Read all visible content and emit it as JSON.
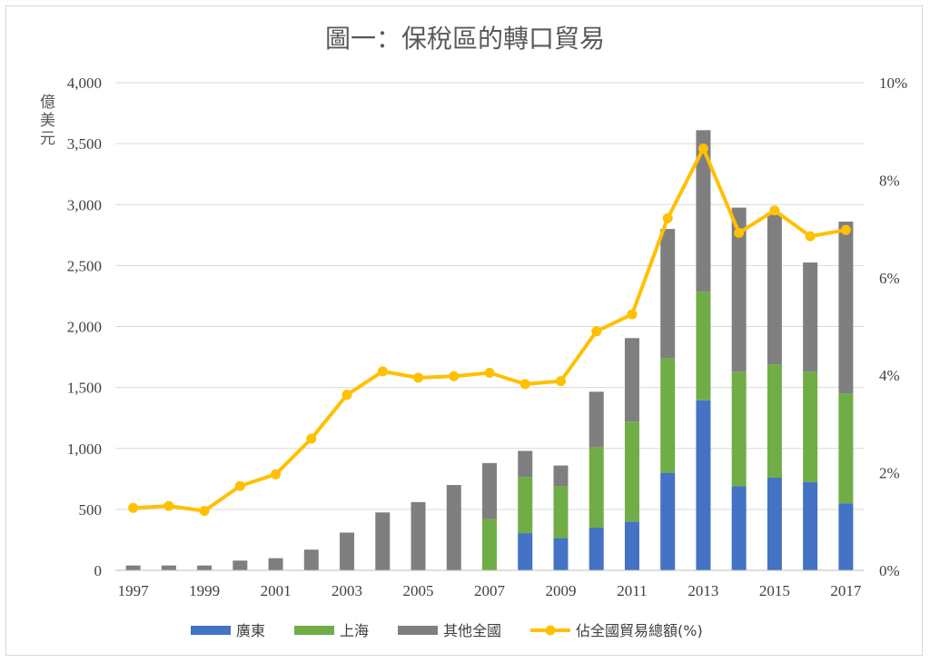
{
  "chart_data": {
    "type": "bar",
    "title": "圖一：保稅區的轉口貿易",
    "ylabel": "億美元",
    "y2label": "",
    "ylim": [
      0,
      4000
    ],
    "y2lim": [
      0,
      10
    ],
    "y_ticks": [
      "0",
      "500",
      "1,000",
      "1,500",
      "2,000",
      "2,500",
      "3,000",
      "3,500",
      "4,000"
    ],
    "y2_ticks": [
      "0%",
      "2%",
      "4%",
      "6%",
      "8%",
      "10%"
    ],
    "x_tick_labels": [
      "1997",
      "1999",
      "2001",
      "2003",
      "2005",
      "2007",
      "2009",
      "2011",
      "2013",
      "2015",
      "2017"
    ],
    "categories": [
      "1997",
      "1998",
      "1999",
      "2000",
      "2001",
      "2002",
      "2003",
      "2004",
      "2005",
      "2006",
      "2007",
      "2008",
      "2009",
      "2010",
      "2011",
      "2012",
      "2013",
      "2014",
      "2015",
      "2016",
      "2017"
    ],
    "stacked": true,
    "grid": true,
    "legend_position": "bottom",
    "series": [
      {
        "name": "廣東",
        "color": "#4472c4",
        "values": [
          0,
          0,
          0,
          0,
          0,
          0,
          0,
          0,
          0,
          0,
          0,
          305,
          265,
          350,
          400,
          800,
          1395,
          690,
          760,
          725,
          550
        ]
      },
      {
        "name": "上海",
        "color": "#70ad47",
        "values": [
          0,
          0,
          0,
          0,
          0,
          0,
          0,
          0,
          0,
          0,
          420,
          460,
          425,
          660,
          820,
          940,
          890,
          940,
          930,
          905,
          900
        ]
      },
      {
        "name": "其他全國",
        "color": "#7f7f7f",
        "values": [
          40,
          40,
          40,
          80,
          100,
          170,
          310,
          475,
          560,
          700,
          460,
          215,
          170,
          455,
          685,
          1060,
          1325,
          1345,
          1235,
          895,
          1410
        ]
      }
    ],
    "line_series": {
      "name": "佔全國貿易總額(%)",
      "color": "#ffc000",
      "axis": "right",
      "values": [
        1.28,
        1.32,
        1.22,
        1.73,
        1.97,
        2.7,
        3.6,
        4.08,
        3.95,
        3.98,
        4.05,
        3.82,
        3.88,
        4.9,
        5.25,
        7.22,
        8.65,
        6.92,
        7.38,
        6.85,
        6.98
      ]
    }
  }
}
